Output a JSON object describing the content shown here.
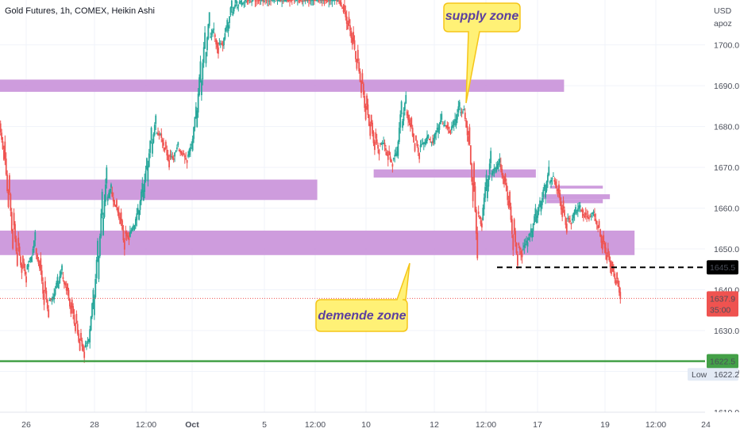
{
  "chart_data": {
    "type": "candlestick",
    "title": "Gold Futures, 1h, COMEX, Heikin Ashi",
    "currency": "USD",
    "currency_sub": "apoz",
    "ylim": [
      1610,
      1711
    ],
    "yticks": [
      1610,
      1620,
      1630,
      1640,
      1650,
      1660,
      1670,
      1680,
      1690,
      1700
    ],
    "x_ticks": [
      {
        "label": "26",
        "bold": false
      },
      {
        "label": "28",
        "bold": false
      },
      {
        "label": "12:00",
        "bold": false
      },
      {
        "label": "Oct",
        "bold": true
      },
      {
        "label": "5",
        "bold": false
      },
      {
        "label": "12:00",
        "bold": false
      },
      {
        "label": "10",
        "bold": false
      },
      {
        "label": "12",
        "bold": false
      },
      {
        "label": "12:00",
        "bold": false
      },
      {
        "label": "17",
        "bold": false
      },
      {
        "label": "19",
        "bold": false
      },
      {
        "label": "12:00",
        "bold": false
      },
      {
        "label": "24",
        "bold": false
      }
    ],
    "heikin_ashi_close_path": [
      1681,
      1672,
      1660,
      1650,
      1646,
      1644,
      1642,
      1648,
      1654,
      1645,
      1636,
      1633,
      1638,
      1643,
      1646,
      1640,
      1634,
      1630,
      1625,
      1623,
      1628,
      1640,
      1652,
      1664,
      1670,
      1666,
      1660,
      1656,
      1650,
      1652,
      1656,
      1660,
      1666,
      1672,
      1680,
      1683,
      1678,
      1674,
      1670,
      1672,
      1676,
      1673,
      1671,
      1676,
      1685,
      1696,
      1703,
      1708,
      1704,
      1698,
      1700,
      1706,
      1711,
      1711,
      1711,
      1711,
      1711,
      1711,
      1711,
      1711,
      1711,
      1711,
      1711,
      1711,
      1711,
      1711,
      1711,
      1711,
      1711,
      1711,
      1711,
      1711,
      1711,
      1711,
      1711,
      1711,
      1711,
      1708,
      1704,
      1700,
      1694,
      1688,
      1682,
      1678,
      1674,
      1673,
      1676,
      1672,
      1670,
      1674,
      1686,
      1688,
      1680,
      1674,
      1672,
      1676,
      1678,
      1676,
      1680,
      1683,
      1680,
      1678,
      1682,
      1686,
      1684,
      1676,
      1662,
      1648,
      1655,
      1668,
      1674,
      1670,
      1672,
      1666,
      1660,
      1650,
      1646,
      1648,
      1652,
      1655,
      1660,
      1662,
      1666,
      1670,
      1668,
      1664,
      1658,
      1654,
      1656,
      1660,
      1661,
      1658,
      1657,
      1659,
      1655,
      1650,
      1647,
      1644,
      1641,
      1638
    ],
    "current_price_path_end": 1637.9,
    "zones": [
      {
        "name": "supply-zone-band",
        "y_top": 1691.5,
        "y_bottom": 1688.5,
        "x_from_frac": 0.0,
        "x_to_frac": 0.8
      },
      {
        "name": "zone-upper-left-band",
        "y_top": 1667,
        "y_bottom": 1662,
        "x_from_frac": 0.0,
        "x_to_frac": 0.45
      },
      {
        "name": "demand-zone-band",
        "y_top": 1654.5,
        "y_bottom": 1648.5,
        "x_from_frac": 0.0,
        "x_to_frac": 0.9
      },
      {
        "name": "zone-mid-band",
        "y_top": 1669.5,
        "y_bottom": 1667.5,
        "x_from_frac": 0.53,
        "x_to_frac": 0.76
      },
      {
        "name": "zone-small-1",
        "y_top": 1665.5,
        "y_bottom": 1664.8,
        "x_from_frac": 0.78,
        "x_to_frac": 0.855
      },
      {
        "name": "zone-small-2",
        "y_top": 1663.4,
        "y_bottom": 1662.2,
        "x_from_frac": 0.77,
        "x_to_frac": 0.865
      },
      {
        "name": "zone-small-3",
        "y_top": 1662.2,
        "y_bottom": 1661.2,
        "x_from_frac": 0.775,
        "x_to_frac": 0.855
      }
    ],
    "annotations": {
      "supply": "supply zone",
      "demand": "demende zone"
    },
    "price_labels": {
      "level_dashed": "1645.5",
      "current_price": "1637.9",
      "countdown": "35:00",
      "green_level": "1622.5",
      "low_label": "Low",
      "low_value": "1622.2"
    },
    "levels": {
      "dashed": 1645.5,
      "current": 1637.9,
      "green": 1622.5,
      "low": 1622.2
    },
    "colors": {
      "up": "#26a69a",
      "down": "#ef5350",
      "zone": "#c991d9",
      "green_line": "#43a047",
      "callout_bg": "#fff176",
      "callout_border": "#f5c518",
      "callout_text": "#5b3fa0",
      "current_label": "#ef5350",
      "dashed_label": "#000000",
      "low_bg": "#e3eaf5"
    }
  }
}
